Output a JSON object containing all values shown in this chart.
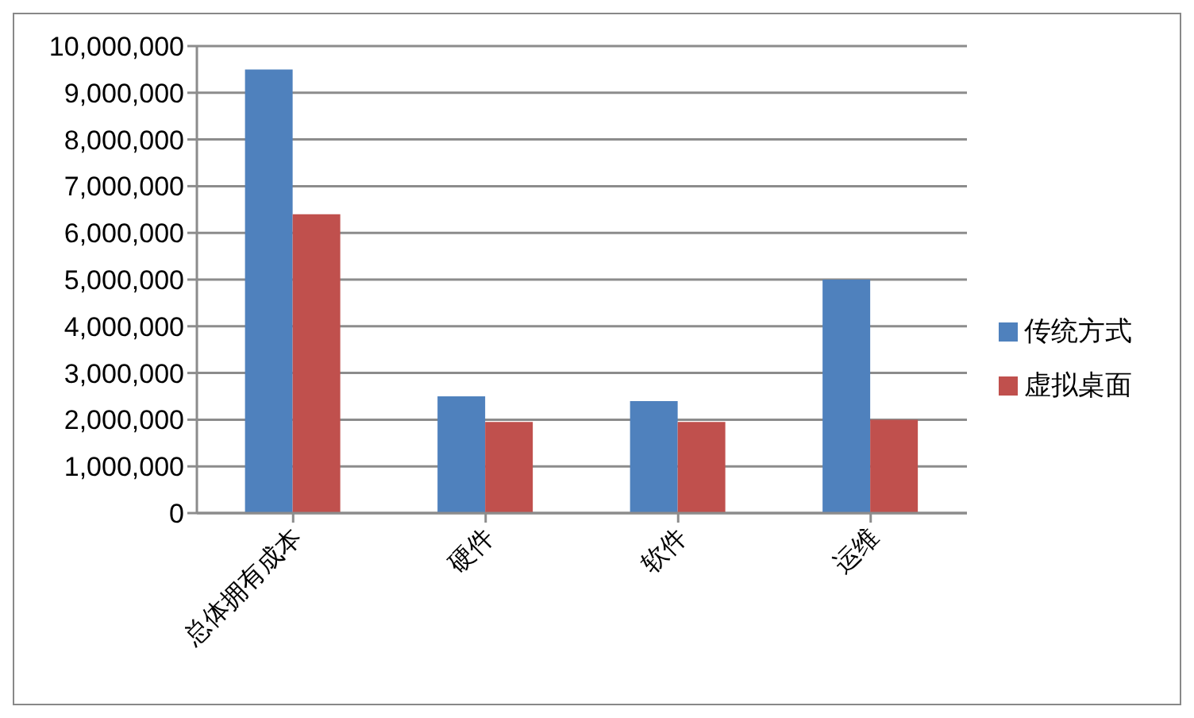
{
  "chart_data": {
    "type": "bar",
    "categories": [
      "总体拥有成本",
      "硬件",
      "软件",
      "运维"
    ],
    "series": [
      {
        "name": "传统方式",
        "color": "#4f81bd",
        "values": [
          9500000,
          2500000,
          2400000,
          5000000
        ]
      },
      {
        "name": "虚拟桌面",
        "color": "#c0504d",
        "values": [
          6400000,
          1950000,
          1950000,
          2000000
        ]
      }
    ],
    "ylim": [
      0,
      10000000
    ],
    "yticks": [
      {
        "value": 0,
        "label": "0"
      },
      {
        "value": 1000000,
        "label": "1,000,000"
      },
      {
        "value": 2000000,
        "label": "2,000,000"
      },
      {
        "value": 3000000,
        "label": "3,000,000"
      },
      {
        "value": 4000000,
        "label": "4,000,000"
      },
      {
        "value": 5000000,
        "label": "5,000,000"
      },
      {
        "value": 6000000,
        "label": "6,000,000"
      },
      {
        "value": 7000000,
        "label": "7,000,000"
      },
      {
        "value": 8000000,
        "label": "8,000,000"
      },
      {
        "value": 9000000,
        "label": "9,000,000"
      },
      {
        "value": 10000000,
        "label": "10,000,000"
      }
    ],
    "grid": "y",
    "legend": "right"
  }
}
